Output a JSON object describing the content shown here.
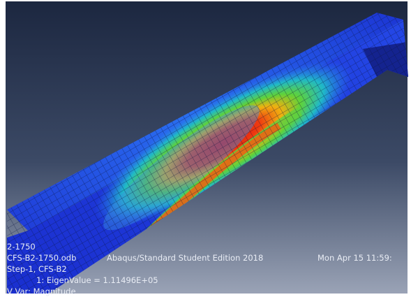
{
  "viewport": {
    "job_name": "2-1750",
    "odb_line": {
      "file": "CFS-B2-1750.odb",
      "product": "Abaqus/Standard Student Edition 2018",
      "date": "Mon Apr 15 11:59:"
    },
    "step": "Step-1, CFS-B2",
    "mode": "1: EigenValue = 1.11496E+05",
    "variable": "V Var: Magnitude"
  }
}
